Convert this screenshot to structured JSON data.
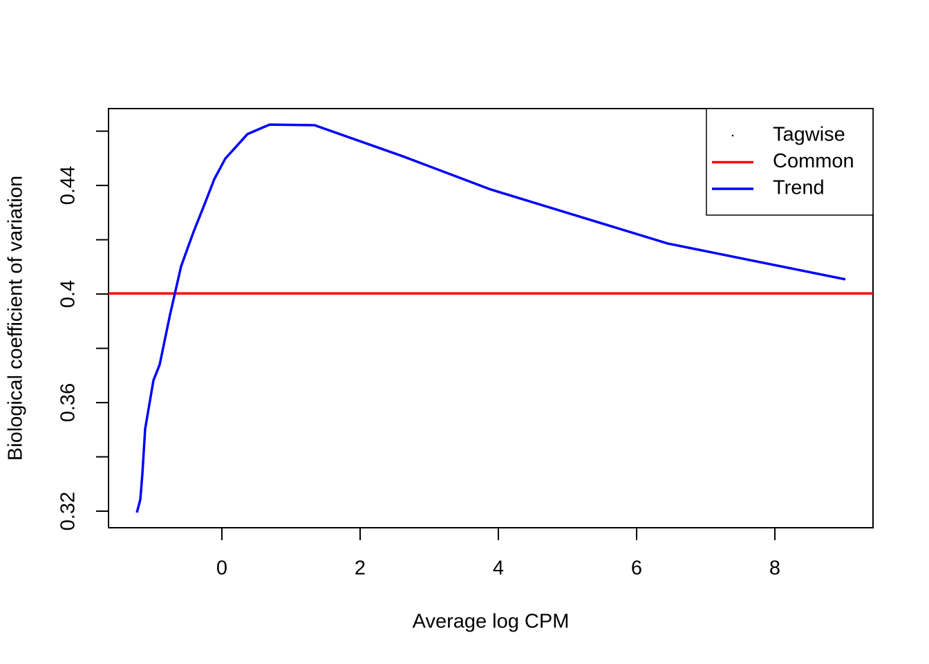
{
  "chart_data": {
    "type": "line",
    "x_label": "Average log CPM",
    "y_label": "Biological coefficient of variation",
    "xlim": [
      -1.64,
      9.42
    ],
    "xticks": [
      0,
      2,
      4,
      6,
      8
    ],
    "ylim": [
      0.3139,
      0.4683
    ],
    "yticks": [
      0.32,
      0.36,
      0.4,
      0.44
    ],
    "yminorticks": [
      0.34,
      0.38,
      0.42,
      0.46
    ],
    "legend": "topright",
    "series": [
      {
        "name": "Tagwise",
        "color": "#000000",
        "x": [],
        "values": []
      },
      {
        "name": "Common",
        "color": "#ff0000",
        "hline": 0.4002
      },
      {
        "name": "Trend",
        "color": "#0000ff",
        "x": [
          -1.23,
          -1.18,
          -1.15,
          -1.11,
          -0.99,
          -0.9,
          -0.75,
          -0.59,
          -0.41,
          -0.25,
          -0.11,
          0.05,
          0.37,
          0.69,
          1.34,
          2.62,
          3.89,
          6.45,
          9.02
        ],
        "values": [
          0.3195,
          0.3243,
          0.3338,
          0.3503,
          0.3682,
          0.374,
          0.3924,
          0.4102,
          0.4229,
          0.4331,
          0.4423,
          0.4499,
          0.4589,
          0.4624,
          0.4622,
          0.4507,
          0.4385,
          0.4186,
          0.4054
        ]
      }
    ]
  }
}
